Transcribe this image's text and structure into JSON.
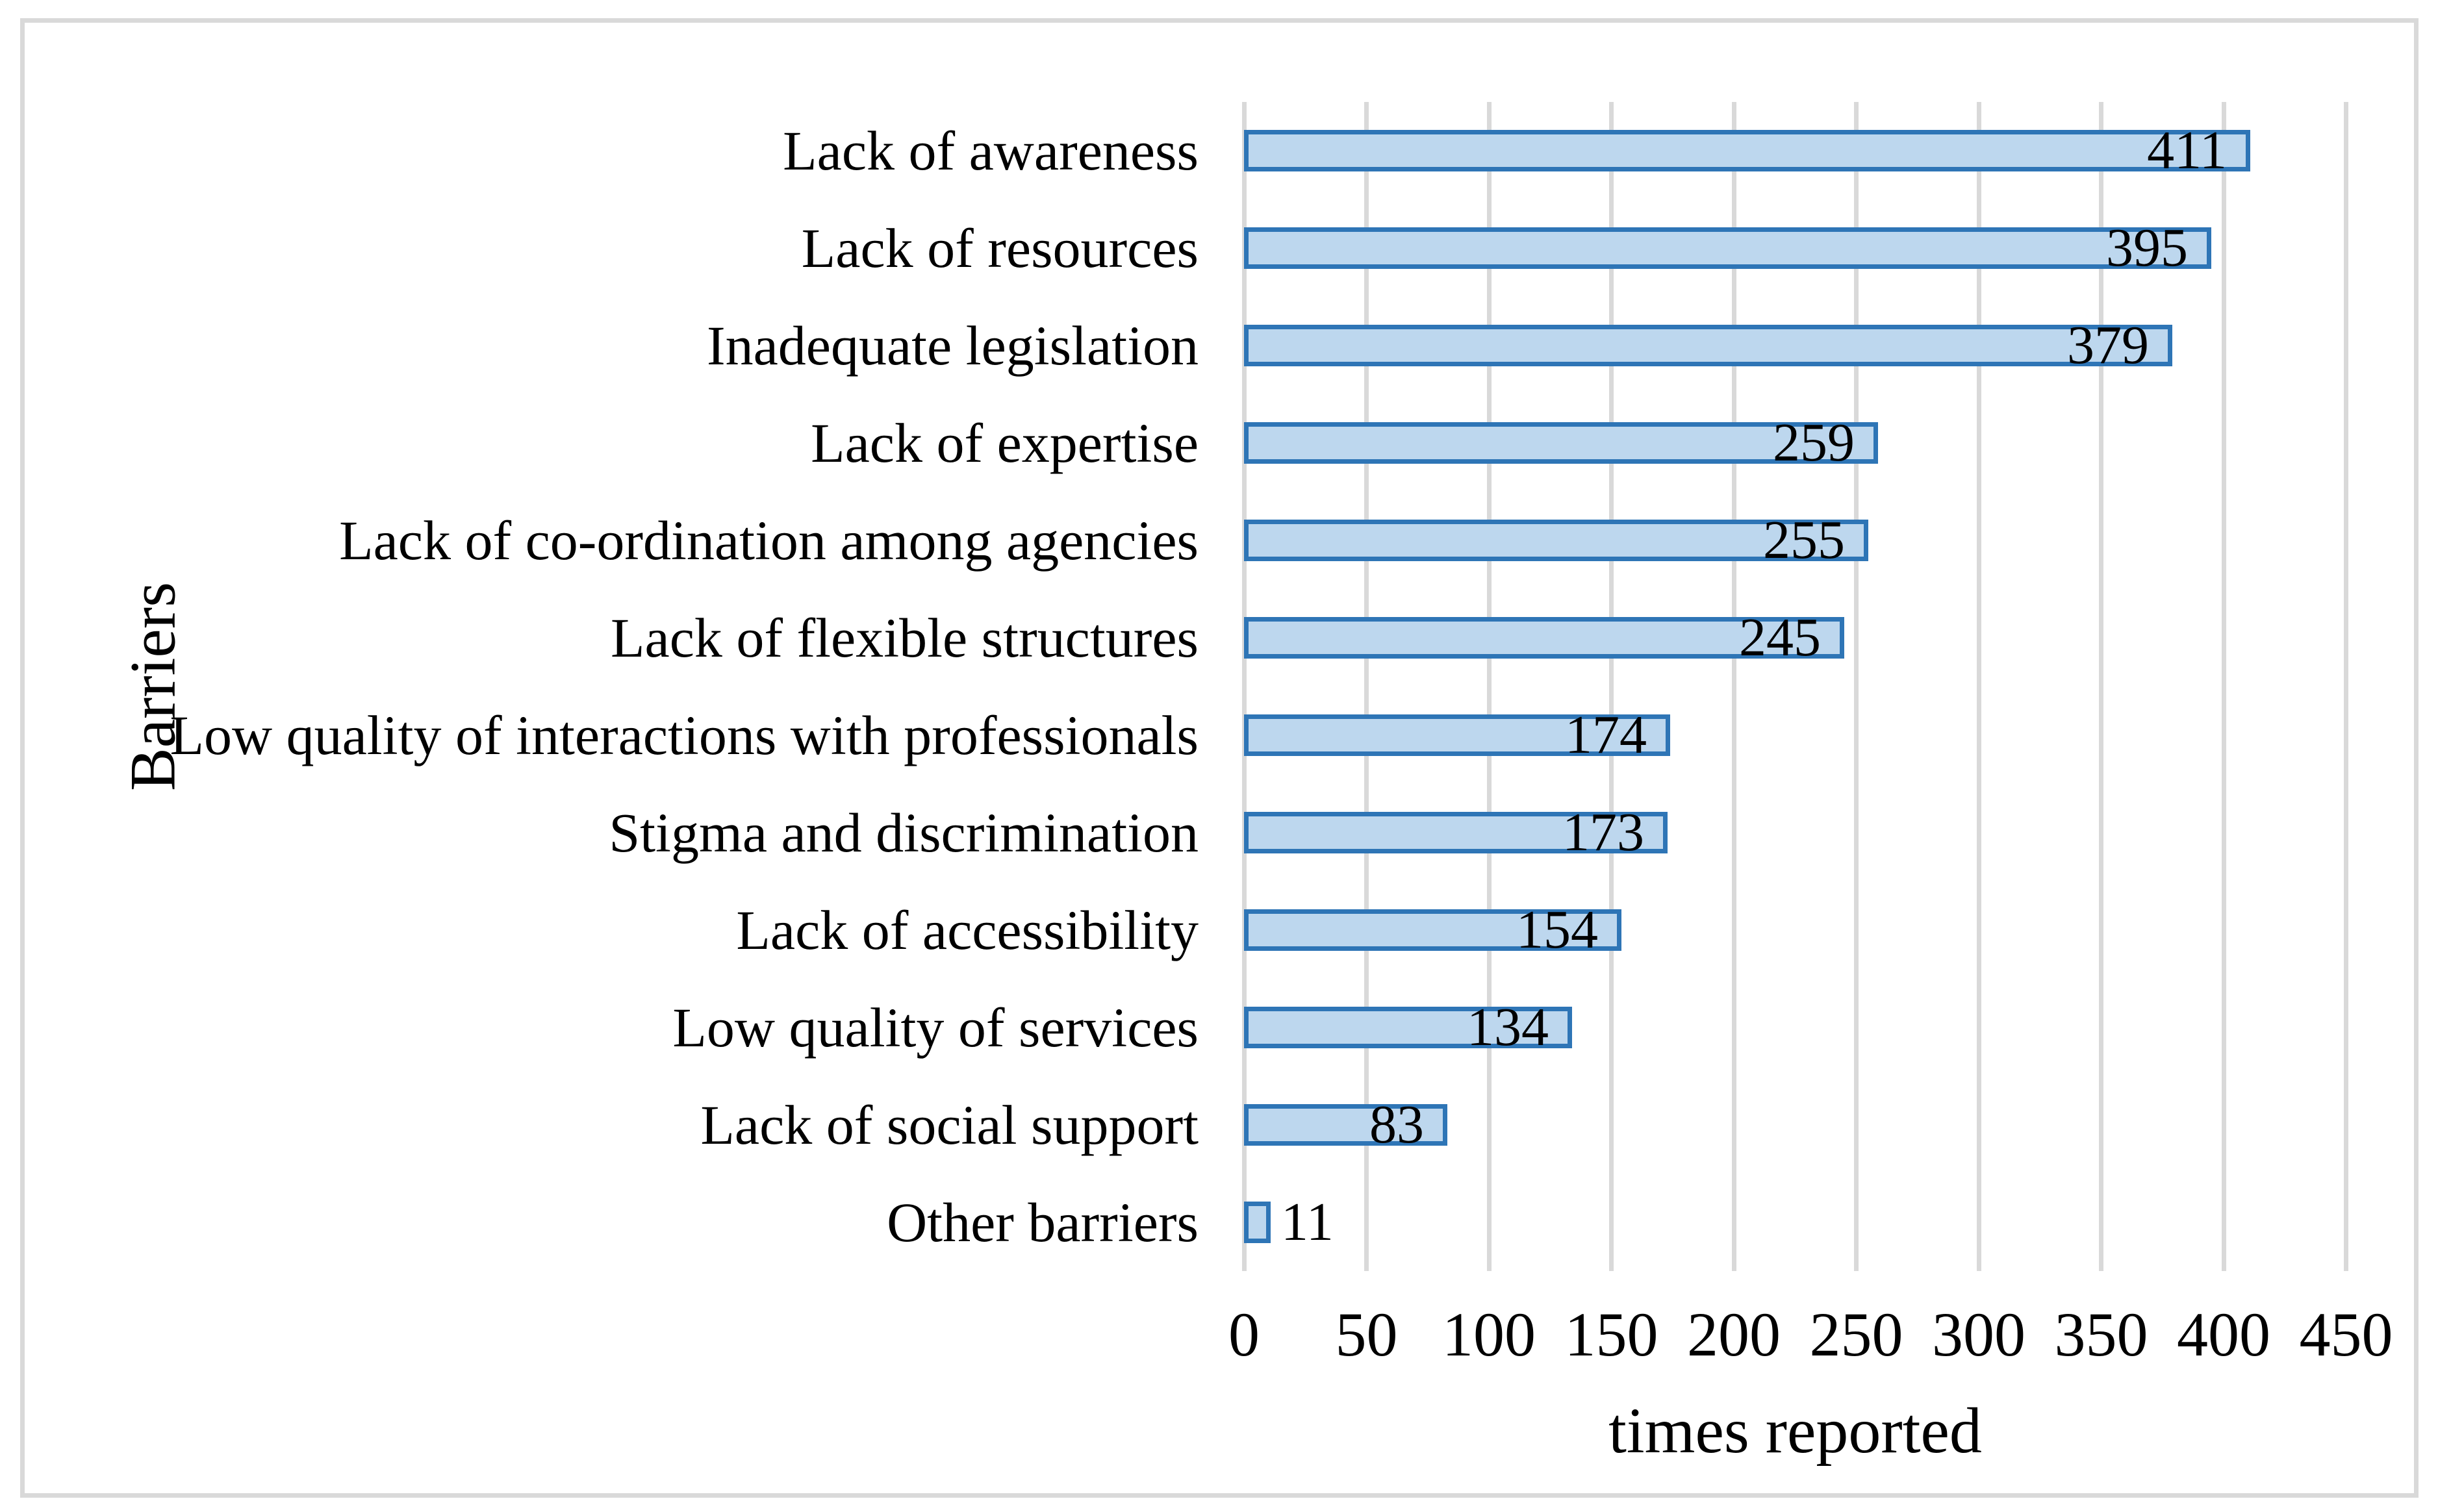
{
  "colors": {
    "background": "#ffffff",
    "frame": "#d9d9d9",
    "gridline": "#d9d9d9",
    "bar_fill": "#bdd7ee",
    "bar_border": "#2e75b6",
    "text": "#000000"
  },
  "chart_data": {
    "type": "bar",
    "orientation": "horizontal",
    "title": "",
    "xlabel": "times reported",
    "ylabel": "Barriers",
    "categories": [
      "Lack of awareness",
      "Lack of resources",
      "Inadequate legislation",
      "Lack of expertise",
      "Lack of co-ordination among agencies",
      "Lack of flexible structures",
      "Low quality of interactions with professionals",
      "Stigma and discrimination",
      "Lack of accessibility",
      "Low quality of services",
      "Lack of social support",
      "Other barriers"
    ],
    "values": [
      411,
      395,
      379,
      259,
      255,
      245,
      174,
      173,
      154,
      134,
      83,
      11
    ],
    "data_labels": [
      "411",
      "395",
      "379",
      "259",
      "255",
      "245",
      "174",
      "173",
      "154",
      "134",
      "83",
      "11"
    ],
    "data_label_placement": [
      "inside",
      "inside",
      "inside",
      "inside",
      "inside",
      "inside",
      "inside",
      "inside",
      "inside",
      "inside",
      "inside",
      "outside"
    ],
    "xlim": [
      0,
      450
    ],
    "xticks": [
      "0",
      "50",
      "100",
      "150",
      "200",
      "250",
      "300",
      "350",
      "400",
      "450"
    ],
    "grid": "vertical-major",
    "legend": "none"
  }
}
